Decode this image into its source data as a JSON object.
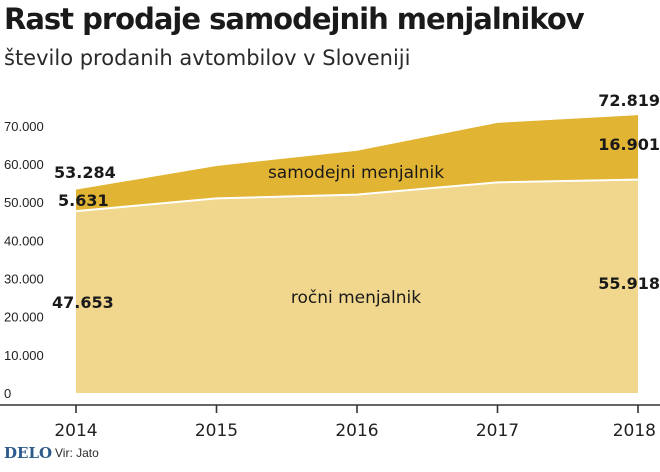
{
  "chart_data": {
    "type": "area",
    "stacked": true,
    "title": "Rast prodaje samodejnih menjalnikov",
    "subtitle": "število prodanih avtombilov v Sloveniji",
    "categories": [
      "2014",
      "2015",
      "2016",
      "2017",
      "2018"
    ],
    "series": [
      {
        "name": "ročni menjalnik",
        "values": [
          47653,
          51000,
          52000,
          55200,
          55918
        ],
        "color": "#f0d78d"
      },
      {
        "name": "samodejni menjalnik",
        "values": [
          5631,
          8500,
          11500,
          15600,
          16901
        ],
        "color": "#e2b433"
      }
    ],
    "y_ticks": [
      "0",
      "10.000",
      "20.000",
      "30.000",
      "40.000",
      "50.000",
      "60.000",
      "70.000"
    ],
    "y_tick_values": [
      0,
      10000,
      20000,
      30000,
      40000,
      50000,
      60000,
      70000
    ],
    "ylim": [
      0,
      76000
    ],
    "grid": false,
    "annotations": {
      "total_2014": "53.284",
      "total_2018": "72.819",
      "auto_2014": "5.631",
      "auto_2018": "16.901",
      "manual_2014": "47.653",
      "manual_2018": "55.918"
    },
    "series_labels": {
      "auto": "samodejni menjalnik",
      "manual": "ročni menjalnik"
    }
  },
  "footer": {
    "logo": "DELO",
    "source": "Vir: Jato"
  },
  "colors": {
    "manual_area": "#f0d78d",
    "auto_area": "#e2b433",
    "separator": "#ffffff",
    "axis": "#333333"
  }
}
